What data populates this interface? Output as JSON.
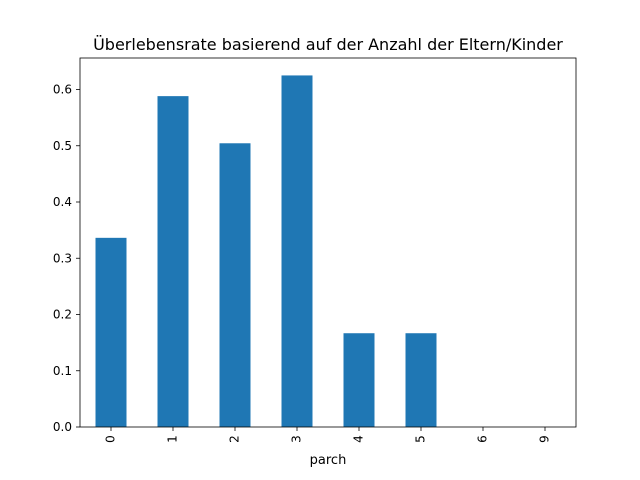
{
  "chart_data": {
    "type": "bar",
    "title": "Überlebensrate basierend auf der Anzahl der Eltern/Kinder",
    "xlabel": "parch",
    "ylabel": "",
    "categories": [
      "0",
      "1",
      "2",
      "3",
      "4",
      "5",
      "6",
      "9"
    ],
    "values": [
      0.3363,
      0.5882,
      0.5044,
      0.625,
      0.1667,
      0.1667,
      0.0,
      0.0
    ],
    "ylim": [
      0,
      0.656
    ],
    "yticks": [
      0.0,
      0.1,
      0.2,
      0.3,
      0.4,
      0.5,
      0.6
    ],
    "ytick_labels": [
      "0.0",
      "0.1",
      "0.2",
      "0.3",
      "0.4",
      "0.5",
      "0.6"
    ],
    "grid": false,
    "legend": "none",
    "bar_color": "#1f77b4"
  }
}
